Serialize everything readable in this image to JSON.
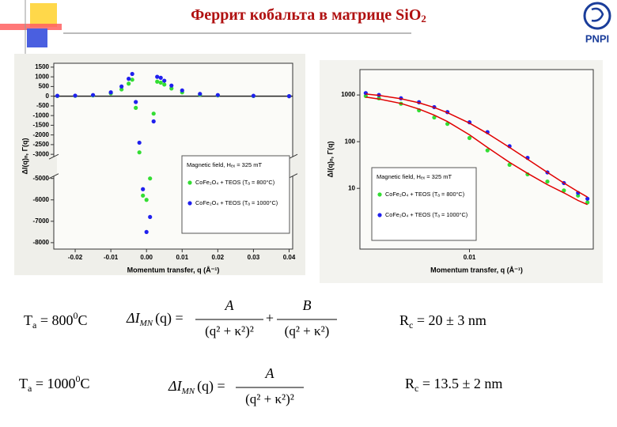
{
  "header": {
    "title": "Феррит кобальта в матрице SiO",
    "title_sub": "2",
    "logo": "PNPI"
  },
  "chart_data": [
    {
      "type": "scatter",
      "y_break": true,
      "zero_line": true,
      "xlabel": "Momentum transfer, q (Å⁻¹)",
      "ylabel": "ΔI(q)ₙ, Γ(q)",
      "annotation": "Magnetic field, Hₑₓ = 325 mT",
      "x": [
        -0.025,
        -0.02,
        -0.015,
        -0.01,
        -0.007,
        -0.005,
        -0.004,
        -0.003,
        -0.002,
        -0.001,
        0,
        0.001,
        0.002,
        0.003,
        0.004,
        0.005,
        0.007,
        0.01,
        0.015,
        0.02,
        0.03,
        0.04
      ],
      "series": [
        {
          "name": "CoFe₂O₄ + TEOS (Tₐ = 800°C)",
          "color": "#33dd33",
          "values": [
            10,
            20,
            40,
            150,
            350,
            650,
            850,
            -600,
            -2900,
            -5800,
            -6000,
            -5000,
            -900,
            750,
            700,
            600,
            400,
            200,
            80,
            40,
            10,
            0
          ]
        },
        {
          "name": "CoFe₂O₄ + TEOS (Tₐ = 1000°C)",
          "color": "#2020ee",
          "values": [
            20,
            30,
            60,
            200,
            500,
            900,
            1150,
            -300,
            -2400,
            -5500,
            -7500,
            -6800,
            -1300,
            1000,
            950,
            800,
            550,
            300,
            120,
            60,
            20,
            0
          ]
        }
      ],
      "xlim": [
        -0.026,
        0.041
      ],
      "ylim": [
        -8300,
        1700
      ],
      "xticks": [
        -0.02,
        -0.01,
        {
          "value": 0,
          "label": "0.00"
        },
        0.01,
        0.02,
        0.03,
        0.04
      ],
      "yticks": [
        1500,
        1000,
        500,
        0,
        -500,
        -1000,
        -1500,
        -2000,
        -2500,
        -3000,
        -5000,
        -6000,
        -7000,
        -8000
      ]
    },
    {
      "type": "scatter",
      "xscale": "log",
      "yscale": "log",
      "xlabel": "Momentum transfer, q (Å⁻¹)",
      "ylabel": "ΔI(q)ₙ, Γ(q)",
      "annotation": "Magnetic field, Hₑₓ = 325 mT",
      "x": [
        0.0035,
        0.004,
        0.005,
        0.006,
        0.007,
        0.008,
        0.01,
        0.012,
        0.015,
        0.018,
        0.022,
        0.026,
        0.03,
        0.033
      ],
      "series": [
        {
          "name": "CoFe₂O₄ + TEOS (Tₐ = 800°C)",
          "color": "#33dd33",
          "values": [
            950,
            850,
            650,
            470,
            330,
            240,
            120,
            65,
            32,
            20,
            14,
            9,
            7,
            5
          ]
        },
        {
          "name": "CoFe₂O₄ + TEOS (Tₐ = 1000°C)",
          "color": "#2020ee",
          "values": [
            1100,
            1000,
            850,
            700,
            550,
            430,
            260,
            160,
            80,
            45,
            22,
            13,
            8,
            6
          ]
        },
        {
          "color": "#e00000",
          "style": "line",
          "values": [
            900,
            820,
            660,
            500,
            370,
            270,
            140,
            75,
            36,
            21,
            12,
            8,
            5.5,
            4.5
          ]
        },
        {
          "color": "#e00000",
          "style": "line",
          "values": [
            1050,
            980,
            830,
            680,
            540,
            420,
            250,
            150,
            75,
            42,
            22,
            13,
            8.5,
            6.5
          ]
        }
      ],
      "xlim": [
        0.0033,
        0.035
      ],
      "ylim": [
        0.5,
        3500
      ],
      "xticks": [
        0.01
      ],
      "yticks": [
        10,
        100,
        1000
      ]
    }
  ],
  "results": [
    {
      "symbol": "T",
      "symbol_sub": "a",
      "value": " = 800",
      "sup": "0",
      "unit": "C",
      "formula": {
        "lhs": "ΔI",
        "lhs_sub": "MN",
        "lhs_arg": "(q) =",
        "terms": [
          {
            "num": "A",
            "den": "(q² + κ²)²"
          },
          {
            "num": "B",
            "den": "(q² + κ²)"
          }
        ],
        "operator": "+"
      },
      "radius_symbol": "R",
      "radius_sub": "c",
      "radius": " = 20 ± 3 nm"
    },
    {
      "symbol": "T",
      "symbol_sub": "a",
      "value": " = 1000",
      "sup": "0",
      "unit": "C",
      "formula": {
        "lhs": "ΔI",
        "lhs_sub": "MN",
        "lhs_arg": "(q) =",
        "terms": [
          {
            "num": "A",
            "den": "(q² + κ²)²"
          }
        ]
      },
      "radius_symbol": "R",
      "radius_sub": "c",
      "radius": " = 13.5 ± 2 nm"
    }
  ]
}
